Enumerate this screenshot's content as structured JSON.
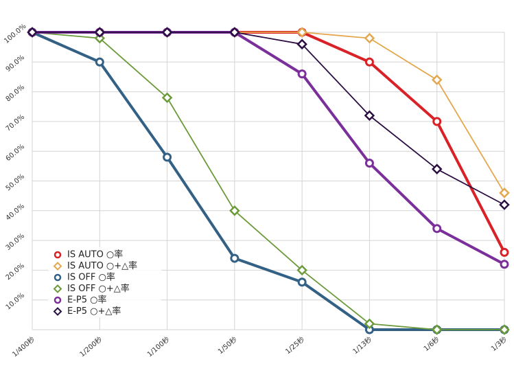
{
  "chart_data": {
    "type": "line",
    "title": "",
    "xlabel": "",
    "ylabel": "",
    "categories": [
      "1/400秒",
      "1/200秒",
      "1/100秒",
      "1/50秒",
      "1/25秒",
      "1/13秒",
      "1/6秒",
      "1/3秒"
    ],
    "ylim": [
      0,
      100
    ],
    "y_ticks": [
      "10.0%",
      "20.0%",
      "30.0%",
      "40.0%",
      "50.0%",
      "60.0%",
      "70.0%",
      "80.0%",
      "90.0%",
      "100.0%"
    ],
    "grid": true,
    "legend_position": "bottom-left",
    "series": [
      {
        "name": "IS AUTO ○率",
        "color": "#d92128",
        "marker": "circle",
        "width": "thick",
        "values": [
          100,
          100,
          100,
          100,
          100,
          90,
          70,
          26
        ]
      },
      {
        "name": "IS AUTO ○+△率",
        "color": "#e3a74d",
        "marker": "diamond",
        "width": "thin",
        "values": [
          100,
          100,
          100,
          100,
          100,
          98,
          84,
          46
        ]
      },
      {
        "name": "IS OFF ○率",
        "color": "#336186",
        "marker": "circle",
        "width": "thick",
        "values": [
          100,
          90,
          58,
          24,
          16,
          0,
          0,
          0
        ]
      },
      {
        "name": "IS OFF ○+△率",
        "color": "#6b9a3a",
        "marker": "diamond",
        "width": "thin",
        "values": [
          100,
          98,
          78,
          40,
          20,
          2,
          0,
          0
        ]
      },
      {
        "name": "E-P5 ○率",
        "color": "#7b2f9a",
        "marker": "circle",
        "width": "thick",
        "values": [
          100,
          100,
          100,
          100,
          86,
          56,
          34,
          22
        ]
      },
      {
        "name": "E-P5 ○+△率",
        "color": "#2b0f43",
        "marker": "diamond",
        "width": "thin",
        "values": [
          100,
          100,
          100,
          100,
          96,
          72,
          54,
          42
        ]
      }
    ]
  }
}
